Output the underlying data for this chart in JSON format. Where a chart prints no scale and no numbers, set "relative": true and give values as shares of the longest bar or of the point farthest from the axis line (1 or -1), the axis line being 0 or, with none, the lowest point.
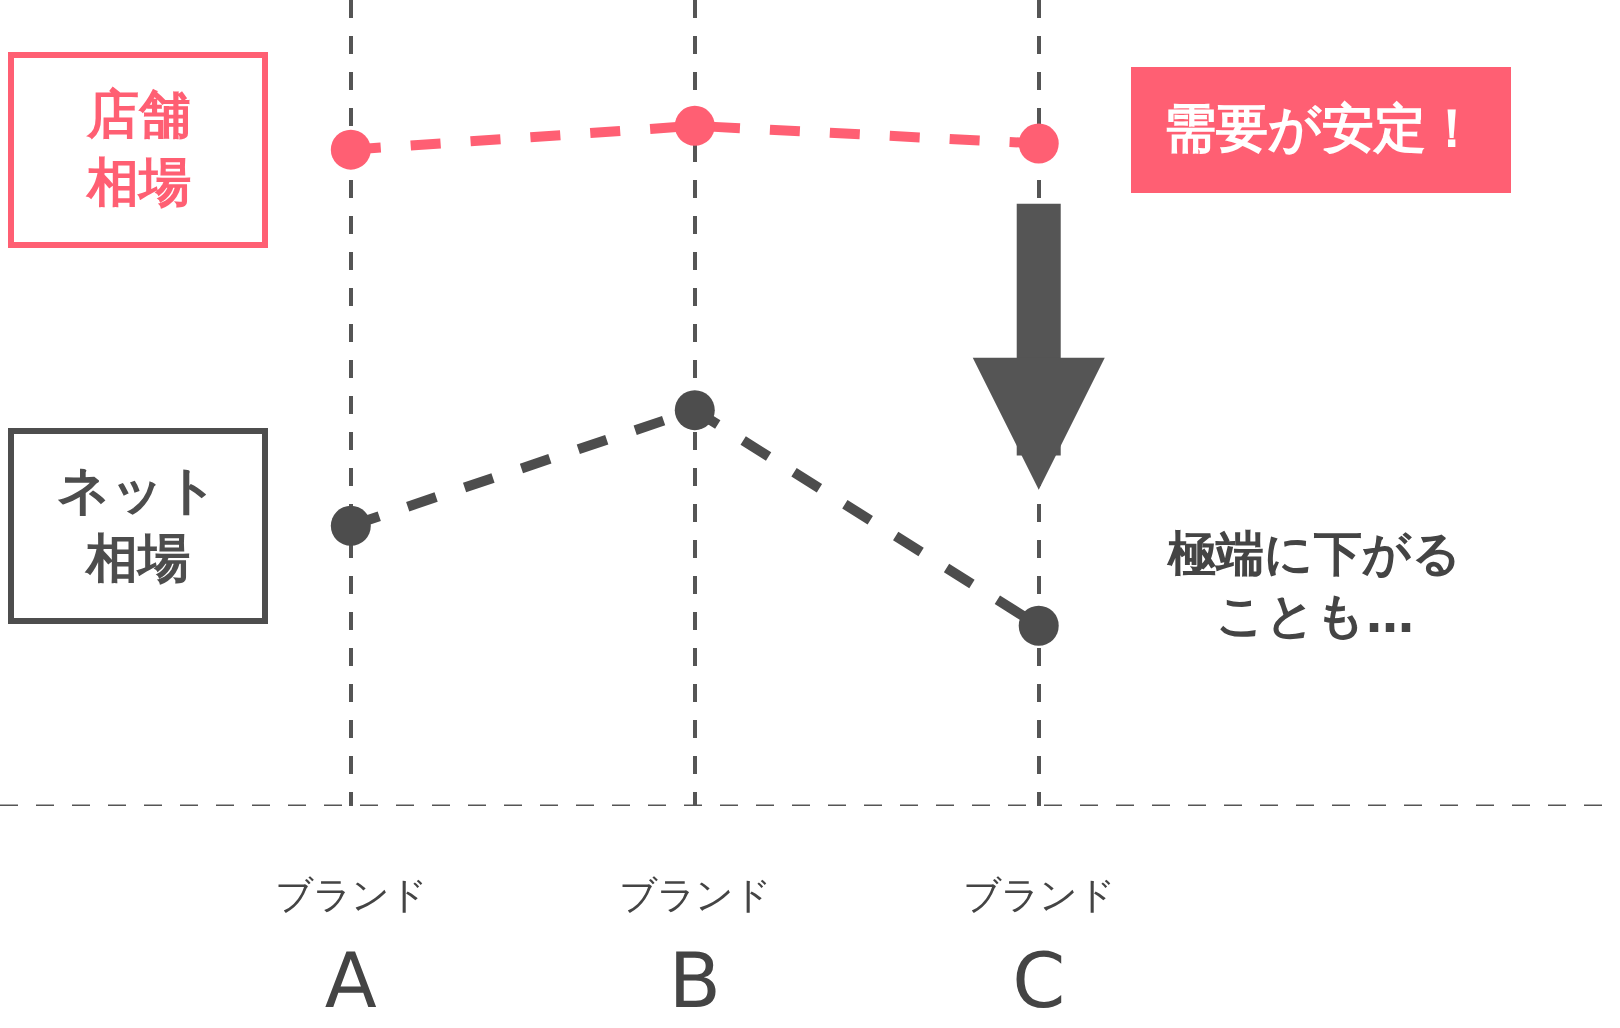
{
  "chart_data": {
    "type": "line",
    "relative": true,
    "categories": [
      "ブランド\nA",
      "ブランド\nB",
      "ブランド\nC"
    ],
    "series": [
      {
        "name": "店舗相場",
        "color": "#ff5f73",
        "values": [
          0.965,
          1.0,
          0.974
        ]
      },
      {
        "name": "ネット相場",
        "color": "#4d4d4d",
        "values": [
          0.412,
          0.582,
          0.265
        ]
      }
    ],
    "annotations": [
      "需要が安定！",
      "極端に下がることも…"
    ],
    "marker": "circle",
    "line_style": "dashed",
    "grid": "x",
    "legend": false
  }
}
